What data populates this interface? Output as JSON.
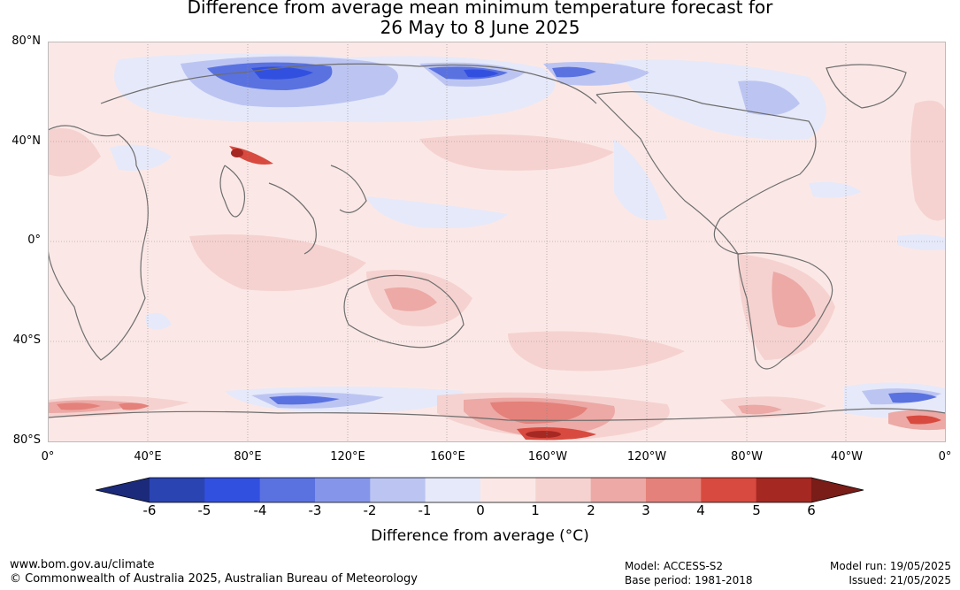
{
  "title_line1": "Difference from average mean minimum temperature forecast for",
  "title_line2": "26 May to 8 June 2025",
  "lat_labels": [
    "80°N",
    "40°N",
    "0°",
    "40°S",
    "80°S"
  ],
  "lon_labels": [
    "0°",
    "40°E",
    "80°E",
    "120°E",
    "160°E",
    "160°W",
    "120°W",
    "80°W",
    "40°W",
    "0°"
  ],
  "colorbar": {
    "ticks": [
      "-6",
      "-5",
      "-4",
      "-3",
      "-2",
      "-1",
      "0",
      "1",
      "2",
      "3",
      "4",
      "5",
      "6"
    ],
    "label": "Difference from average (°C)",
    "colors": {
      "lt-6": "#1b2a7a",
      "-6_-5": "#2a44b2",
      "-5_-4": "#3250e0",
      "-4_-3": "#5a72e0",
      "-3_-2": "#8596ea",
      "-2_-1": "#bcc5f2",
      "-1_0": "#e6e9f9",
      "0_1": "#fbe8e6",
      "1_2": "#f5d2d0",
      "2_3": "#eca9a5",
      "3_4": "#e4817a",
      "4_5": "#d84a3f",
      "5_6": "#a52823",
      "gt6": "#7a1c18"
    }
  },
  "footer": {
    "website": "www.bom.gov.au/climate",
    "copyright": "© Commonwealth of Australia 2025, Australian Bureau of Meteorology",
    "model": "Model: ACCESS-S2",
    "base_period": "Base period: 1981-2018",
    "model_run": "Model run: 19/05/2025",
    "issued": "Issued: 21/05/2025"
  }
}
